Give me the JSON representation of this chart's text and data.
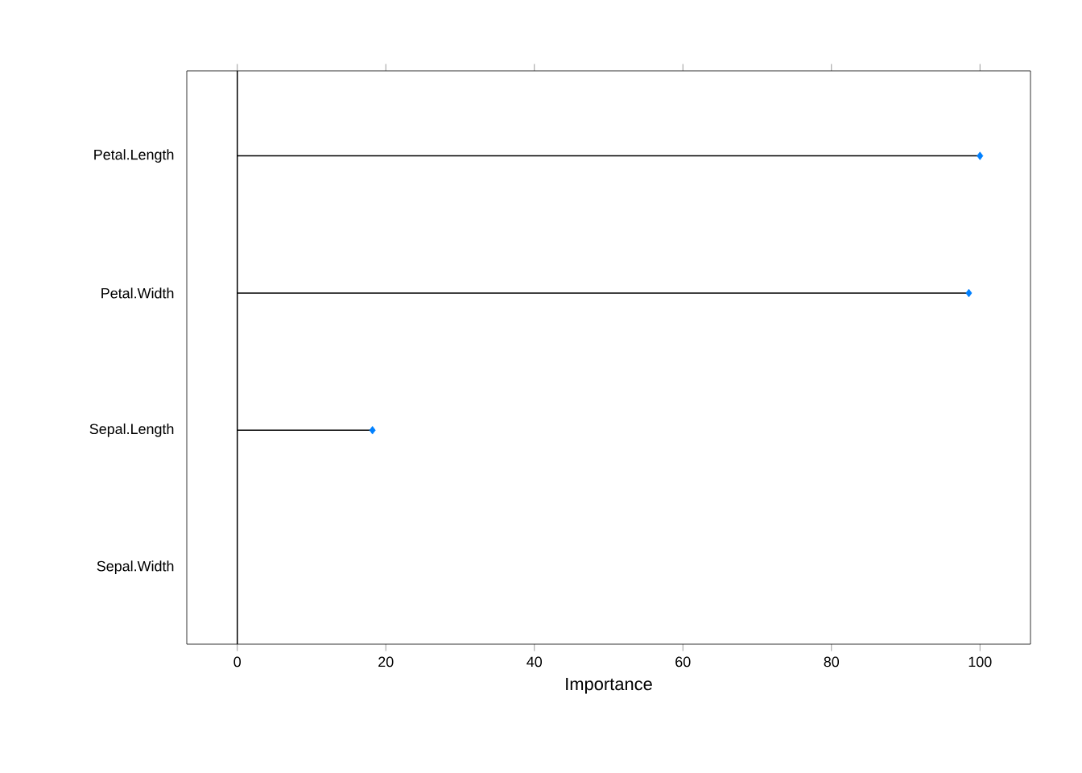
{
  "chart_data": {
    "type": "lollipop",
    "orientation": "horizontal",
    "xlabel": "Importance",
    "categories": [
      "Petal.Length",
      "Petal.Width",
      "Sepal.Length",
      "Sepal.Width"
    ],
    "values": [
      100,
      98.5,
      18.2,
      null
    ],
    "color": "#0080ff",
    "marker": "diamond",
    "xlim": [
      -6.8,
      106.8
    ],
    "xticks": [
      0,
      20,
      40,
      60,
      80,
      100
    ],
    "ref_lines": [
      {
        "axis": "x",
        "value": 0
      }
    ],
    "grid": false
  }
}
